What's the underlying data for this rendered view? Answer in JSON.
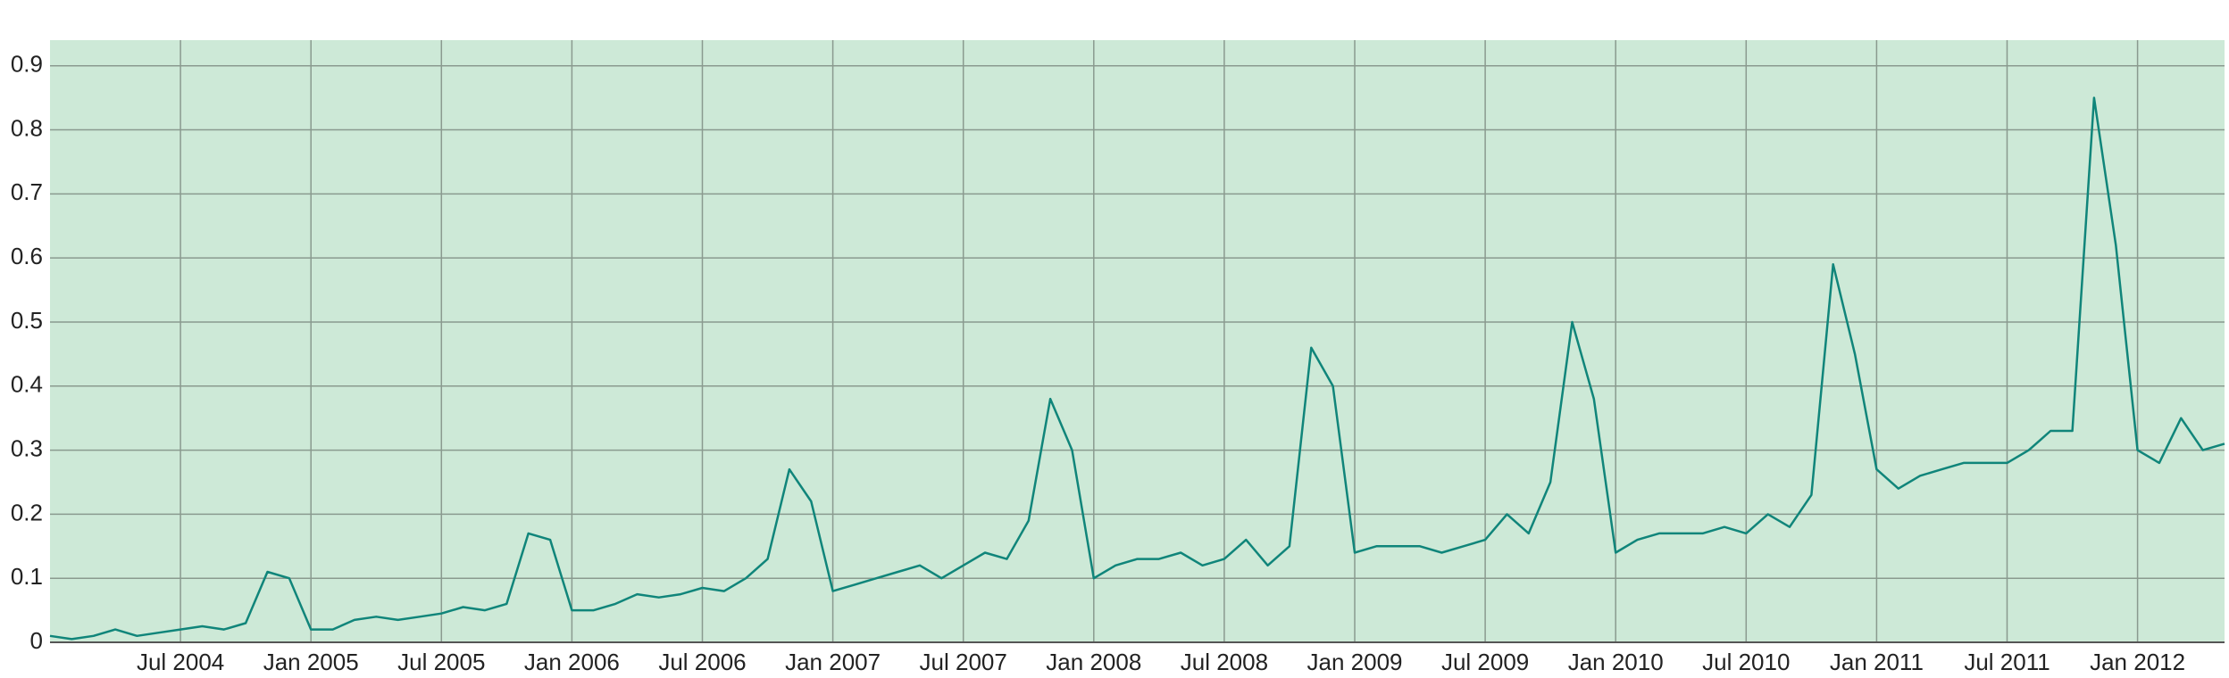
{
  "chart_data": {
    "type": "line",
    "x": [
      "2004-01",
      "2004-02",
      "2004-03",
      "2004-04",
      "2004-05",
      "2004-06",
      "2004-07",
      "2004-08",
      "2004-09",
      "2004-10",
      "2004-11",
      "2004-12",
      "2005-01",
      "2005-02",
      "2005-03",
      "2005-04",
      "2005-05",
      "2005-06",
      "2005-07",
      "2005-08",
      "2005-09",
      "2005-10",
      "2005-11",
      "2005-12",
      "2006-01",
      "2006-02",
      "2006-03",
      "2006-04",
      "2006-05",
      "2006-06",
      "2006-07",
      "2006-08",
      "2006-09",
      "2006-10",
      "2006-11",
      "2006-12",
      "2007-01",
      "2007-02",
      "2007-03",
      "2007-04",
      "2007-05",
      "2007-06",
      "2007-07",
      "2007-08",
      "2007-09",
      "2007-10",
      "2007-11",
      "2007-12",
      "2008-01",
      "2008-02",
      "2008-03",
      "2008-04",
      "2008-05",
      "2008-06",
      "2008-07",
      "2008-08",
      "2008-09",
      "2008-10",
      "2008-11",
      "2008-12",
      "2009-01",
      "2009-02",
      "2009-03",
      "2009-04",
      "2009-05",
      "2009-06",
      "2009-07",
      "2009-08",
      "2009-09",
      "2009-10",
      "2009-11",
      "2009-12",
      "2010-01",
      "2010-02",
      "2010-03",
      "2010-04",
      "2010-05",
      "2010-06",
      "2010-07",
      "2010-08",
      "2010-09",
      "2010-10",
      "2010-11",
      "2010-12",
      "2011-01",
      "2011-02",
      "2011-03",
      "2011-04",
      "2011-05",
      "2011-06",
      "2011-07",
      "2011-08",
      "2011-09",
      "2011-10",
      "2011-11",
      "2011-12",
      "2012-01",
      "2012-02",
      "2012-03",
      "2012-04",
      "2012-05"
    ],
    "series": [
      {
        "color": "#10857a",
        "values": [
          0.01,
          0.005,
          0.01,
          0.02,
          0.01,
          0.015,
          0.02,
          0.025,
          0.02,
          0.03,
          0.11,
          0.1,
          0.02,
          0.02,
          0.035,
          0.04,
          0.035,
          0.04,
          0.045,
          0.055,
          0.05,
          0.06,
          0.17,
          0.16,
          0.05,
          0.05,
          0.06,
          0.075,
          0.07,
          0.075,
          0.085,
          0.08,
          0.1,
          0.13,
          0.27,
          0.22,
          0.08,
          0.09,
          0.1,
          0.11,
          0.12,
          0.1,
          0.12,
          0.14,
          0.13,
          0.19,
          0.38,
          0.3,
          0.1,
          0.12,
          0.13,
          0.13,
          0.14,
          0.12,
          0.13,
          0.16,
          0.12,
          0.15,
          0.46,
          0.4,
          0.14,
          0.15,
          0.15,
          0.15,
          0.14,
          0.15,
          0.16,
          0.2,
          0.17,
          0.25,
          0.5,
          0.38,
          0.14,
          0.16,
          0.17,
          0.17,
          0.17,
          0.18,
          0.17,
          0.2,
          0.18,
          0.23,
          0.59,
          0.45,
          0.27,
          0.24,
          0.26,
          0.27,
          0.28,
          0.28,
          0.28,
          0.3,
          0.33,
          0.33,
          0.85,
          0.62,
          0.3,
          0.28,
          0.35,
          0.3,
          0.31
        ]
      }
    ],
    "xlim": [
      "2004-01",
      "2012-05"
    ],
    "xticks": [
      {
        "value": "2004-07",
        "label": "Jul 2004"
      },
      {
        "value": "2005-01",
        "label": "Jan 2005"
      },
      {
        "value": "2005-07",
        "label": "Jul 2005"
      },
      {
        "value": "2006-01",
        "label": "Jan 2006"
      },
      {
        "value": "2006-07",
        "label": "Jul 2006"
      },
      {
        "value": "2007-01",
        "label": "Jan 2007"
      },
      {
        "value": "2007-07",
        "label": "Jul 2007"
      },
      {
        "value": "2008-01",
        "label": "Jan 2008"
      },
      {
        "value": "2008-07",
        "label": "Jul 2008"
      },
      {
        "value": "2009-01",
        "label": "Jan 2009"
      },
      {
        "value": "2009-07",
        "label": "Jul 2009"
      },
      {
        "value": "2010-01",
        "label": "Jan 2010"
      },
      {
        "value": "2010-07",
        "label": "Jul 2010"
      },
      {
        "value": "2011-01",
        "label": "Jan 2011"
      },
      {
        "value": "2011-07",
        "label": "Jul 2011"
      },
      {
        "value": "2012-01",
        "label": "Jan 2012"
      }
    ],
    "ylim": [
      0,
      0.94
    ],
    "yticks": [
      0,
      0.1,
      0.2,
      0.3,
      0.4,
      0.5,
      0.6,
      0.7,
      0.8,
      0.9
    ],
    "grid": true,
    "background": "#cde9d7"
  }
}
